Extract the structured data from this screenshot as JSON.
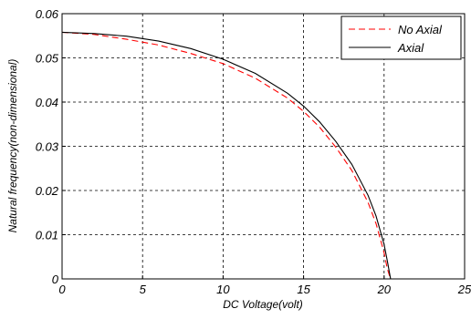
{
  "chart_data": {
    "type": "line",
    "xlabel": "DC Voltage(volt)",
    "ylabel": "Natural frequency(non-dimensional)",
    "xlim": [
      0,
      25
    ],
    "ylim": [
      0,
      0.06
    ],
    "xticks": [
      "0",
      "5",
      "10",
      "15",
      "20",
      "25"
    ],
    "yticks": [
      "0",
      "0.01",
      "0.02",
      "0.03",
      "0.04",
      "0.05",
      "0.06"
    ],
    "grid": true,
    "legend_position": "top-right",
    "series": [
      {
        "name": "No Axial",
        "color": "#ff0000",
        "style": "dashed",
        "x": [
          0,
          2,
          4,
          6,
          8,
          10,
          12,
          14,
          15,
          16,
          17,
          18,
          19,
          19.5,
          20,
          20.2,
          20.4
        ],
        "y": [
          0.0558,
          0.0553,
          0.0542,
          0.0529,
          0.051,
          0.0487,
          0.0454,
          0.0409,
          0.0379,
          0.0343,
          0.0298,
          0.0245,
          0.0173,
          0.0125,
          0.0059,
          0.0023,
          0.0
        ]
      },
      {
        "name": "Axial",
        "color": "#000000",
        "style": "solid",
        "x": [
          0,
          2,
          4,
          6,
          8,
          10,
          12,
          14,
          15,
          16,
          17,
          18,
          19,
          19.5,
          20,
          20.2,
          20.4
        ],
        "y": [
          0.0558,
          0.0555,
          0.0549,
          0.0538,
          0.0521,
          0.0497,
          0.0465,
          0.042,
          0.0391,
          0.0355,
          0.0311,
          0.0259,
          0.0189,
          0.0142,
          0.0078,
          0.0041,
          0.0
        ]
      }
    ]
  }
}
